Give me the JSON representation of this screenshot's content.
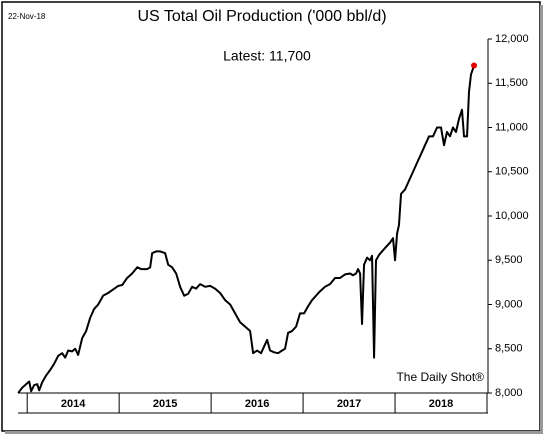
{
  "chart_data": {
    "type": "line",
    "title": "US Total Oil Production ('000 bbl/d)",
    "date": "22-Nov-18",
    "annotation": "Latest:  11,700",
    "source": "The Daily Shot®",
    "series": [
      {
        "name": "US Total Oil Production",
        "color": "#000000",
        "highlight_color": "#e00000",
        "x": [
          2013.902,
          2013.946,
          2013.989,
          2014.022,
          2014.043,
          2014.076,
          2014.109,
          2014.13,
          2014.163,
          2014.207,
          2014.25,
          2014.293,
          2014.337,
          2014.38,
          2014.413,
          2014.446,
          2014.489,
          2014.522,
          2014.554,
          2014.598,
          2014.641,
          2014.685,
          2014.728,
          2014.772,
          2014.826,
          2014.88,
          2014.935,
          2014.989,
          2015.033,
          2015.087,
          2015.141,
          2015.196,
          2015.239,
          2015.304,
          2015.337,
          2015.359,
          2015.402,
          2015.446,
          2015.5,
          2015.533,
          2015.576,
          2015.62,
          2015.663,
          2015.707,
          2015.75,
          2015.793,
          2015.837,
          2015.88,
          2015.935,
          2015.989,
          2016.043,
          2016.098,
          2016.152,
          2016.207,
          2016.261,
          2016.315,
          2016.37,
          2016.424,
          2016.457,
          2016.5,
          2016.543,
          2016.587,
          2016.609,
          2016.641,
          2016.685,
          2016.728,
          2016.772,
          2016.804,
          2016.837,
          2016.88,
          2016.924,
          2016.967,
          2017.011,
          2017.054,
          2017.098,
          2017.141,
          2017.185,
          2017.239,
          2017.293,
          2017.348,
          2017.402,
          2017.457,
          2017.511,
          2017.543,
          2017.576,
          2017.598,
          2017.62,
          2017.641,
          2017.663,
          2017.696,
          2017.728,
          2017.75,
          2017.772,
          2017.793,
          2017.826,
          2017.859,
          2017.902,
          2017.946,
          2017.978,
          2018.0,
          2018.022,
          2018.043,
          2018.065,
          2018.109,
          2018.152,
          2018.196,
          2018.239,
          2018.283,
          2018.326,
          2018.37,
          2018.413,
          2018.457,
          2018.5,
          2018.533,
          2018.565,
          2018.598,
          2018.63,
          2018.663,
          2018.696,
          2018.728,
          2018.75,
          2018.783,
          2018.804,
          2018.826,
          2018.859
        ],
        "values": [
          8000,
          8060,
          8100,
          8130,
          8020,
          8090,
          8100,
          8030,
          8120,
          8200,
          8260,
          8330,
          8420,
          8450,
          8400,
          8480,
          8470,
          8500,
          8430,
          8620,
          8700,
          8850,
          8950,
          9000,
          9100,
          9130,
          9170,
          9210,
          9220,
          9300,
          9350,
          9420,
          9400,
          9400,
          9420,
          9580,
          9600,
          9600,
          9580,
          9450,
          9420,
          9350,
          9200,
          9100,
          9120,
          9200,
          9180,
          9230,
          9200,
          9210,
          9180,
          9130,
          9050,
          9000,
          8900,
          8800,
          8750,
          8700,
          8450,
          8480,
          8450,
          8550,
          8600,
          8480,
          8460,
          8450,
          8480,
          8500,
          8680,
          8700,
          8750,
          8900,
          8900,
          8980,
          9050,
          9100,
          9150,
          9200,
          9230,
          9300,
          9300,
          9340,
          9350,
          9330,
          9350,
          9400,
          9350,
          8780,
          9450,
          9530,
          9500,
          9550,
          8400,
          9500,
          9560,
          9600,
          9650,
          9700,
          9750,
          9500,
          9800,
          9900,
          10250,
          10300,
          10400,
          10500,
          10600,
          10700,
          10800,
          10900,
          10900,
          11000,
          11000,
          10800,
          10950,
          10900,
          11000,
          10950,
          11100,
          11200,
          10900,
          10900,
          11400,
          11600,
          11700
        ]
      }
    ],
    "xlim": [
      2013.9,
      2019.0
    ],
    "xticks": [
      {
        "value": 2014.5,
        "label": "2014"
      },
      {
        "value": 2015.5,
        "label": "2015"
      },
      {
        "value": 2016.5,
        "label": "2016"
      },
      {
        "value": 2017.5,
        "label": "2017"
      },
      {
        "value": 2018.5,
        "label": "2018"
      }
    ],
    "ylim": [
      8000,
      12000
    ],
    "yticks": [
      {
        "value": 8000,
        "label": "8,000"
      },
      {
        "value": 8500,
        "label": "8,500"
      },
      {
        "value": 9000,
        "label": "9,000"
      },
      {
        "value": 9500,
        "label": "9,500"
      },
      {
        "value": 10000,
        "label": "10,000"
      },
      {
        "value": 10500,
        "label": "10,500"
      },
      {
        "value": 11000,
        "label": "11,000"
      },
      {
        "value": 11500,
        "label": "11,500"
      },
      {
        "value": 12000,
        "label": "12,000"
      }
    ]
  }
}
